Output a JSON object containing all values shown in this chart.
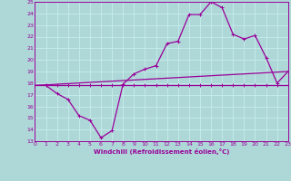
{
  "bg_color": "#aed8d8",
  "grid_color": "#c8ecec",
  "line_color": "#990099",
  "xlim": [
    0,
    23
  ],
  "ylim": [
    13,
    25
  ],
  "xticks": [
    0,
    1,
    2,
    3,
    4,
    5,
    6,
    7,
    8,
    9,
    10,
    11,
    12,
    13,
    14,
    15,
    16,
    17,
    18,
    19,
    20,
    21,
    22,
    23
  ],
  "yticks": [
    13,
    14,
    15,
    16,
    17,
    18,
    19,
    20,
    21,
    22,
    23,
    24,
    25
  ],
  "xlabel": "Windchill (Refroidissement éolien,°C)",
  "curve1_x": [
    0,
    1,
    2,
    3,
    4,
    5,
    6,
    7,
    8,
    9,
    10,
    11,
    12,
    13,
    14,
    15,
    16,
    17,
    18,
    19,
    20,
    21,
    22,
    23
  ],
  "curve1_y": [
    17.8,
    17.8,
    17.1,
    16.6,
    15.2,
    14.8,
    13.3,
    13.9,
    17.9,
    18.8,
    19.2,
    19.5,
    21.4,
    21.6,
    23.9,
    23.9,
    25.0,
    24.5,
    22.2,
    21.8,
    22.1,
    20.2,
    18.0,
    19.0
  ],
  "curve2_x": [
    0,
    1,
    2,
    3,
    4,
    5,
    6,
    7,
    8,
    9,
    10,
    11,
    12,
    13,
    14,
    15,
    16,
    17,
    18,
    19,
    20,
    21,
    22,
    23
  ],
  "curve2_y": [
    17.8,
    17.8,
    17.8,
    17.8,
    17.8,
    17.8,
    17.8,
    17.8,
    17.8,
    17.8,
    17.8,
    17.8,
    17.8,
    17.8,
    17.8,
    17.8,
    17.8,
    17.8,
    17.8,
    17.8,
    17.8,
    17.8,
    17.8,
    17.8
  ],
  "curve3_x": [
    0,
    23
  ],
  "curve3_y": [
    17.8,
    19.0
  ],
  "marker_size": 2.5,
  "linewidth": 0.9
}
